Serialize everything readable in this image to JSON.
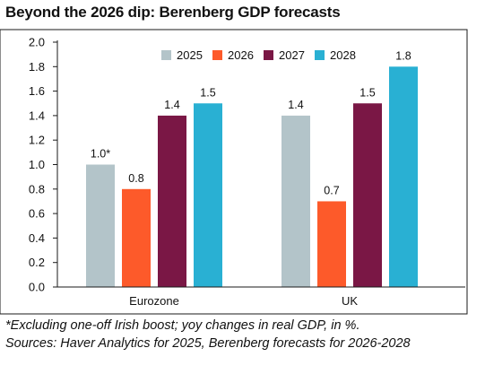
{
  "title": "Beyond the 2026 dip: Berenberg GDP forecasts",
  "footnotes": [
    "*Excluding one-off Irish boost; yoy changes in real GDP, in %.",
    "Sources: Haver Analytics for 2025, Berenberg forecasts for 2026-2028"
  ],
  "chart_data": {
    "type": "bar",
    "categories": [
      "Eurozone",
      "UK"
    ],
    "series": [
      {
        "name": "2025",
        "color": "#b3c4c9",
        "values": [
          1.0,
          1.4
        ],
        "labels": [
          "1.0*",
          "1.4"
        ]
      },
      {
        "name": "2026",
        "color": "#fd5a2a",
        "values": [
          0.8,
          0.7
        ],
        "labels": [
          "0.8",
          "0.7"
        ]
      },
      {
        "name": "2027",
        "color": "#7a1745",
        "values": [
          1.4,
          1.5
        ],
        "labels": [
          "1.4",
          "1.5"
        ]
      },
      {
        "name": "2028",
        "color": "#29b0d3",
        "values": [
          1.5,
          1.8
        ],
        "labels": [
          "1.5",
          "1.8"
        ]
      }
    ],
    "ylim": [
      0.0,
      2.0
    ],
    "yticks": [
      "0.0",
      "0.2",
      "0.4",
      "0.6",
      "0.8",
      "1.0",
      "1.2",
      "1.4",
      "1.6",
      "1.8",
      "2.0"
    ],
    "legend_position": "top-center",
    "grid": false,
    "xlabel": "",
    "ylabel": ""
  }
}
